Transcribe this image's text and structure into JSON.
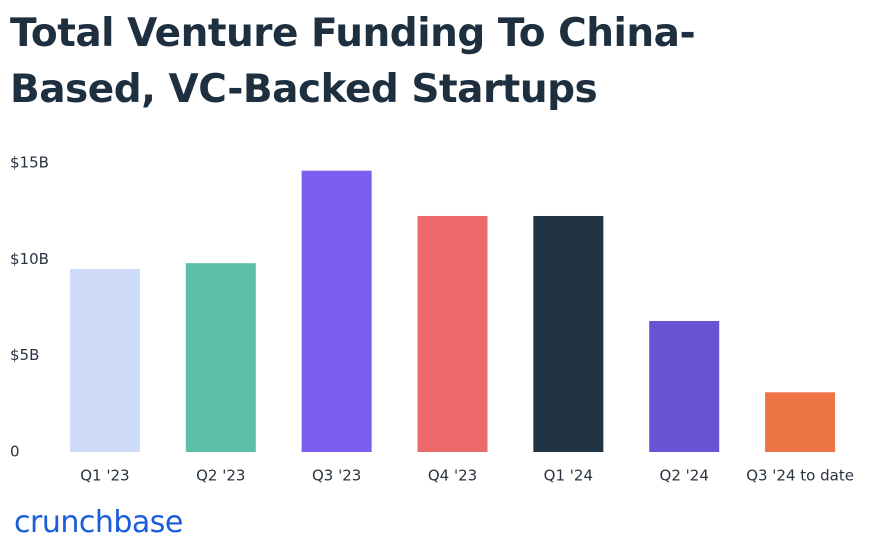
{
  "chart_data": {
    "type": "bar",
    "title": "Total Venture Funding To China-Based, VC-Backed Startups",
    "categories": [
      "Q1 '23",
      "Q2 '23",
      "Q3 '23",
      "Q4 '23",
      "Q1 '24",
      "Q2 '24",
      "Q3 '24 to date"
    ],
    "values": [
      9.5,
      9.8,
      14.6,
      12.25,
      12.25,
      6.8,
      3.1
    ],
    "colors": [
      "#cfdcf9",
      "#5bc0a6",
      "#7b5ef0",
      "#ec6a6a",
      "#203444",
      "#6a52d4",
      "#ec7445"
    ],
    "ylim": [
      0,
      15
    ],
    "yticks": [
      {
        "value": 0,
        "label": "0"
      },
      {
        "value": 5,
        "label": "$5B"
      },
      {
        "value": 10,
        "label": "$10B"
      },
      {
        "value": 15,
        "label": "$15B"
      }
    ],
    "grid": false,
    "logo": "crunchbase"
  }
}
